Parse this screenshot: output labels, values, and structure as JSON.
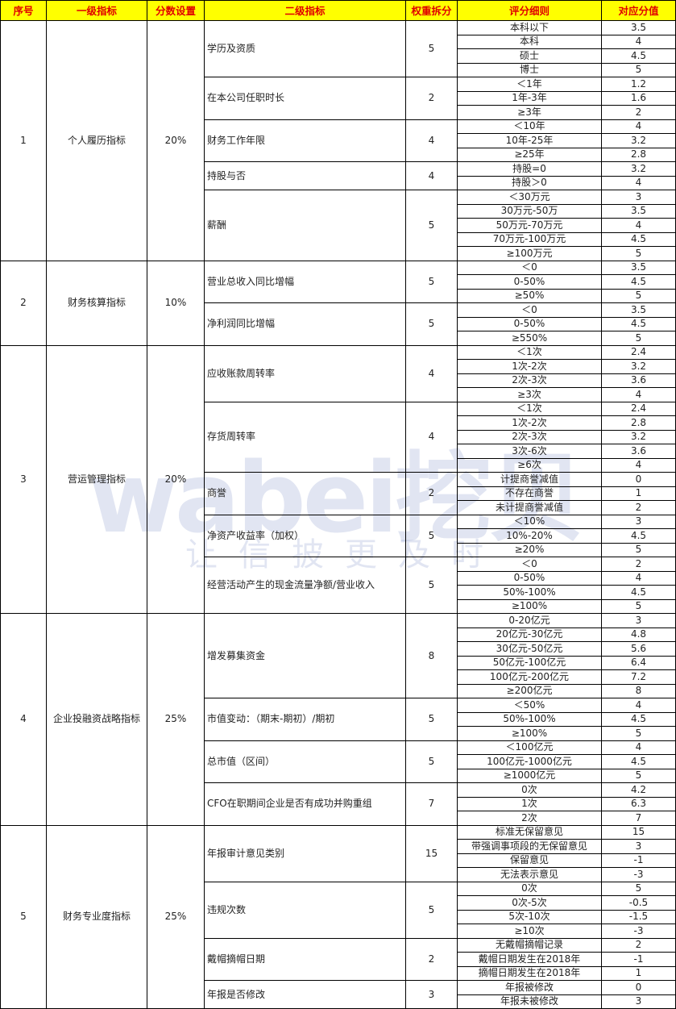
{
  "headers": [
    "序号",
    "一级指标",
    "分数设置",
    "二级指标",
    "权重拆分",
    "评分细则",
    "对应分值"
  ],
  "colors": {
    "header_bg": "#ffff00",
    "header_text": "#e00000"
  },
  "watermark": {
    "logo": "wabei挖贝",
    "slogan": "让信披更及时"
  },
  "groups": [
    {
      "no": "1",
      "name": "个人履历指标",
      "weight": "20%",
      "items": [
        {
          "name": "学历及资质",
          "weight": "5",
          "rules": [
            [
              "本科以下",
              "3.5"
            ],
            [
              "本科",
              "4"
            ],
            [
              "硕士",
              "4.5"
            ],
            [
              "博士",
              "5"
            ]
          ]
        },
        {
          "name": "在本公司任职时长",
          "weight": "2",
          "rules": [
            [
              "＜1年",
              "1.2"
            ],
            [
              "1年-3年",
              "1.6"
            ],
            [
              "≥3年",
              "2"
            ]
          ]
        },
        {
          "name": "财务工作年限",
          "weight": "4",
          "rules": [
            [
              "＜10年",
              "4"
            ],
            [
              "10年-25年",
              "3.2"
            ],
            [
              "≥25年",
              "2.8"
            ]
          ]
        },
        {
          "name": "持股与否",
          "weight": "4",
          "rules": [
            [
              "持股=0",
              "3.2"
            ],
            [
              "持股＞0",
              "4"
            ]
          ]
        },
        {
          "name": "薪酬",
          "weight": "5",
          "rules": [
            [
              "＜30万元",
              "3"
            ],
            [
              "30万元-50万",
              "3.5"
            ],
            [
              "50万元-70万元",
              "4"
            ],
            [
              "70万元-100万元",
              "4.5"
            ],
            [
              "≥100万元",
              "5"
            ]
          ]
        }
      ]
    },
    {
      "no": "2",
      "name": "财务核算指标",
      "weight": "10%",
      "items": [
        {
          "name": "营业总收入同比增幅",
          "weight": "5",
          "rules": [
            [
              "＜0",
              "3.5"
            ],
            [
              "0-50%",
              "4.5"
            ],
            [
              "≥50%",
              "5"
            ]
          ]
        },
        {
          "name": "净利润同比增幅",
          "weight": "5",
          "rules": [
            [
              "＜0",
              "3.5"
            ],
            [
              "0-50%",
              "4.5"
            ],
            [
              "≥550%",
              "5"
            ]
          ]
        }
      ]
    },
    {
      "no": "3",
      "name": "营运管理指标",
      "weight": "20%",
      "items": [
        {
          "name": "应收账款周转率",
          "weight": "4",
          "rules": [
            [
              "＜1次",
              "2.4"
            ],
            [
              "1次-2次",
              "3.2"
            ],
            [
              "2次-3次",
              "3.6"
            ],
            [
              "≥3次",
              "4"
            ]
          ]
        },
        {
          "name": "存货周转率",
          "weight": "4",
          "rules": [
            [
              "＜1次",
              "2.4"
            ],
            [
              "1次-2次",
              "2.8"
            ],
            [
              "2次-3次",
              "3.2"
            ],
            [
              "3次-6次",
              "3.6"
            ],
            [
              "≥6次",
              "4"
            ]
          ]
        },
        {
          "name": "商誉",
          "weight": "2",
          "rules": [
            [
              "计提商誉减值",
              "0"
            ],
            [
              "不存在商誉",
              "1"
            ],
            [
              "未计提商誉减值",
              "2"
            ]
          ]
        },
        {
          "name": "净资产收益率（加权）",
          "weight": "5",
          "rules": [
            [
              "＜10%",
              "3"
            ],
            [
              "10%-20%",
              "4.5"
            ],
            [
              "≥20%",
              "5"
            ]
          ]
        },
        {
          "name": "经营活动产生的现金流量净额/营业收入",
          "weight": "5",
          "rules": [
            [
              "＜0",
              "2"
            ],
            [
              "0-50%",
              "4"
            ],
            [
              "50%-100%",
              "4.5"
            ],
            [
              "≥100%",
              "5"
            ]
          ]
        }
      ]
    },
    {
      "no": "4",
      "name": "企业投融资战略指标",
      "weight": "25%",
      "items": [
        {
          "name": "增发募集资金",
          "weight": "8",
          "rules": [
            [
              "0-20亿元",
              "3"
            ],
            [
              "20亿元-30亿元",
              "4.8"
            ],
            [
              "30亿元-50亿元",
              "5.6"
            ],
            [
              "50亿元-100亿元",
              "6.4"
            ],
            [
              "100亿元-200亿元",
              "7.2"
            ],
            [
              "≥200亿元",
              "8"
            ]
          ]
        },
        {
          "name": "市值变动：（期末-期初）/期初",
          "weight": "5",
          "rules": [
            [
              "＜50%",
              "4"
            ],
            [
              "50%-100%",
              "4.5"
            ],
            [
              "≥100%",
              "5"
            ]
          ]
        },
        {
          "name": "总市值（区间）",
          "weight": "5",
          "rules": [
            [
              "＜100亿元",
              "4"
            ],
            [
              "100亿元-1000亿元",
              "4.5"
            ],
            [
              "≥1000亿元",
              "5"
            ]
          ]
        },
        {
          "name": "CFO在职期间企业是否有成功并购重组",
          "weight": "7",
          "rules": [
            [
              "0次",
              "4.2"
            ],
            [
              "1次",
              "6.3"
            ],
            [
              "2次",
              "7"
            ]
          ]
        }
      ]
    },
    {
      "no": "5",
      "name": "财务专业度指标",
      "weight": "25%",
      "items": [
        {
          "name": "年报审计意见类别",
          "weight": "15",
          "rules": [
            [
              "标准无保留意见",
              "15"
            ],
            [
              "带强调事项段的无保留意见",
              "3"
            ],
            [
              "保留意见",
              "-1"
            ],
            [
              "无法表示意见",
              "-3"
            ]
          ]
        },
        {
          "name": "违规次数",
          "weight": "5",
          "rules": [
            [
              "0次",
              "5"
            ],
            [
              "0次-5次",
              "-0.5"
            ],
            [
              "5次-10次",
              "-1.5"
            ],
            [
              "≥10次",
              "-3"
            ]
          ]
        },
        {
          "name": "戴帽摘帽日期",
          "weight": "2",
          "rules": [
            [
              "无戴帽摘帽记录",
              "2"
            ],
            [
              "戴帽日期发生在2018年",
              "-1"
            ],
            [
              "摘帽日期发生在2018年",
              "1"
            ]
          ]
        },
        {
          "name": "年报是否修改",
          "weight": "3",
          "rules": [
            [
              "年报被修改",
              "0"
            ],
            [
              "年报未被修改",
              "3"
            ]
          ]
        }
      ]
    }
  ]
}
